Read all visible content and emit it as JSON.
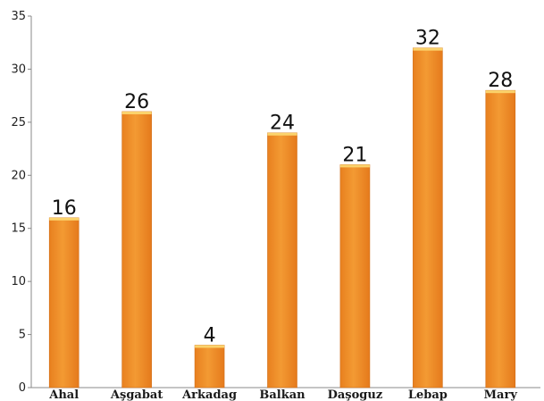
{
  "chart_data": {
    "type": "bar",
    "title": "",
    "xlabel": "",
    "ylabel": "",
    "categories": [
      "Ahal",
      "Aşgabat",
      "Arkadag",
      "Balkan",
      "Daşoguz",
      "Lebap",
      "Mary"
    ],
    "values": [
      16,
      26,
      4,
      24,
      21,
      32,
      28
    ],
    "ylim": [
      0,
      35
    ],
    "yticks": [
      0,
      5,
      10,
      15,
      20,
      25,
      30,
      35
    ],
    "grid": false,
    "legend": "none",
    "data_labels": true
  },
  "colors": {
    "bar_main": "#f0922c",
    "bar_top": "#f7b24a",
    "bar_bottom": "#e57a1c",
    "bar_cap": "#fbd36c"
  }
}
